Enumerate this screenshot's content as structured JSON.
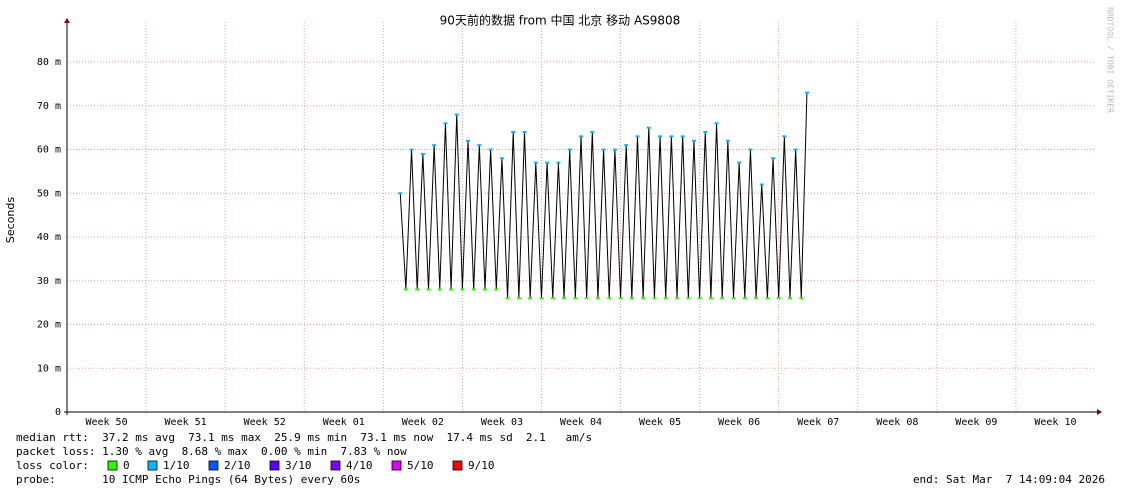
{
  "chart_data": {
    "type": "line",
    "title": "90天前的数据 from 中国 北京 移动 AS9808",
    "y_label": "Seconds",
    "watermark": "RRDTOOL / TOBI OETIKER",
    "xlim": [
      0,
      91
    ],
    "ylim": [
      0,
      0.088
    ],
    "yticks": [
      {
        "value": 0,
        "label": "0"
      },
      {
        "value": 0.01,
        "label": "10 m"
      },
      {
        "value": 0.02,
        "label": "20 m"
      },
      {
        "value": 0.03,
        "label": "30 m"
      },
      {
        "value": 0.04,
        "label": "40 m"
      },
      {
        "value": 0.05,
        "label": "50 m"
      },
      {
        "value": 0.06,
        "label": "60 m"
      },
      {
        "value": 0.07,
        "label": "70 m"
      },
      {
        "value": 0.08,
        "label": "80 m"
      }
    ],
    "xticks": [
      {
        "value": 3.5,
        "label": "Week 50"
      },
      {
        "value": 10.5,
        "label": "Week 51"
      },
      {
        "value": 17.5,
        "label": "Week 52"
      },
      {
        "value": 24.5,
        "label": "Week 01"
      },
      {
        "value": 31.5,
        "label": "Week 02"
      },
      {
        "value": 38.5,
        "label": "Week 03"
      },
      {
        "value": 45.5,
        "label": "Week 04"
      },
      {
        "value": 52.5,
        "label": "Week 05"
      },
      {
        "value": 59.5,
        "label": "Week 06"
      },
      {
        "value": 66.5,
        "label": "Week 07"
      },
      {
        "value": 73.5,
        "label": "Week 08"
      },
      {
        "value": 80.5,
        "label": "Week 09"
      },
      {
        "value": 87.5,
        "label": "Week 10"
      }
    ],
    "xgrid": [
      7,
      14,
      21,
      28,
      35,
      42,
      49,
      56,
      63,
      70,
      77,
      84
    ],
    "grid": true,
    "x": [
      29.5,
      30,
      30.5,
      31,
      31.5,
      32,
      32.5,
      33,
      33.5,
      34,
      34.5,
      35,
      35.5,
      36,
      36.5,
      37,
      37.5,
      38,
      38.5,
      39,
      39.5,
      40,
      40.5,
      41,
      41.5,
      42,
      42.5,
      43,
      43.5,
      44,
      44.5,
      45,
      45.5,
      46,
      46.5,
      47,
      47.5,
      48,
      48.5,
      49,
      49.5,
      50,
      50.5,
      51,
      51.5,
      52,
      52.5,
      53,
      53.5,
      54,
      54.5,
      55,
      55.5,
      56,
      56.5,
      57,
      57.5,
      58,
      58.5,
      59,
      59.5,
      60,
      60.5,
      61,
      61.5,
      62,
      62.5,
      63,
      63.5,
      64,
      64.5,
      65,
      65.5
    ],
    "series": [
      {
        "name": "median rtt",
        "color": "#000000",
        "values": [
          0.05,
          0.028,
          0.06,
          0.028,
          0.059,
          0.028,
          0.061,
          0.028,
          0.066,
          0.028,
          0.068,
          0.028,
          0.062,
          0.028,
          0.061,
          0.028,
          0.06,
          0.028,
          0.058,
          0.026,
          0.064,
          0.026,
          0.064,
          0.026,
          0.057,
          0.026,
          0.057,
          0.026,
          0.057,
          0.026,
          0.06,
          0.026,
          0.063,
          0.026,
          0.064,
          0.026,
          0.06,
          0.026,
          0.06,
          0.026,
          0.061,
          0.026,
          0.063,
          0.026,
          0.065,
          0.026,
          0.063,
          0.026,
          0.063,
          0.026,
          0.063,
          0.026,
          0.062,
          0.026,
          0.064,
          0.026,
          0.066,
          0.026,
          0.062,
          0.026,
          0.057,
          0.026,
          0.06,
          0.026,
          0.052,
          0.026,
          0.058,
          0.026,
          0.063,
          0.026,
          0.06,
          0.026,
          0.073
        ]
      }
    ],
    "stats": [
      "median rtt:  37.2 ms avg  73.1 ms max  25.9 ms min  73.1 ms now  17.4 ms sd  2.1   am/s",
      "packet loss: 1.30 % avg  8.68 % max  0.00 % min  7.83 % now"
    ],
    "loss_label": "loss color:",
    "loss_colors": [
      {
        "name": "0",
        "color": "#26ff00"
      },
      {
        "name": "1/10",
        "color": "#00b8ff"
      },
      {
        "name": "2/10",
        "color": "#0059ff"
      },
      {
        "name": "3/10",
        "color": "#5e00ff"
      },
      {
        "name": "4/10",
        "color": "#7e00ff"
      },
      {
        "name": "5/10",
        "color": "#dd00ff"
      },
      {
        "name": "9/10",
        "color": "#ff0000"
      }
    ],
    "probe": "probe:       10 ICMP Echo Pings (64 Bytes) every 60s",
    "end": "end: Sat Mar  7 14:09:04 2026"
  }
}
